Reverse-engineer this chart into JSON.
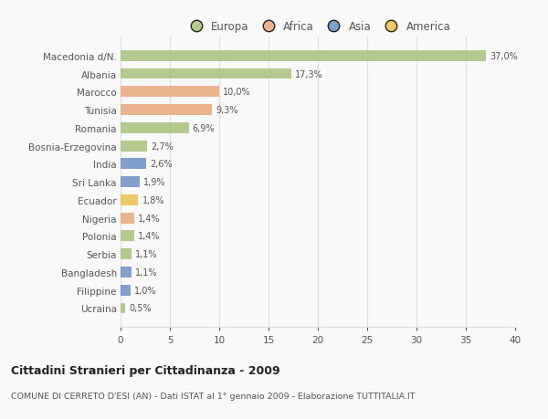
{
  "countries": [
    "Macedonia d/N.",
    "Albania",
    "Marocco",
    "Tunisia",
    "Romania",
    "Bosnia-Erzegovina",
    "India",
    "Sri Lanka",
    "Ecuador",
    "Nigeria",
    "Polonia",
    "Serbia",
    "Bangladesh",
    "Filippine",
    "Ucraina"
  ],
  "values": [
    37.0,
    17.3,
    10.0,
    9.3,
    6.9,
    2.7,
    2.6,
    1.9,
    1.8,
    1.4,
    1.4,
    1.1,
    1.1,
    1.0,
    0.5
  ],
  "labels": [
    "37,0%",
    "17,3%",
    "10,0%",
    "9,3%",
    "6,9%",
    "2,7%",
    "2,6%",
    "1,9%",
    "1,8%",
    "1,4%",
    "1,4%",
    "1,1%",
    "1,1%",
    "1,0%",
    "0,5%"
  ],
  "colors": [
    "#a8c17c",
    "#a8c17c",
    "#e8a87c",
    "#e8a87c",
    "#a8c17c",
    "#a8c17c",
    "#6a8fc4",
    "#6a8fc4",
    "#f0c050",
    "#e8a87c",
    "#a8c17c",
    "#a8c17c",
    "#6a8fc4",
    "#6a8fc4",
    "#a8c17c"
  ],
  "legend_labels": [
    "Europa",
    "Africa",
    "Asia",
    "America"
  ],
  "legend_colors": [
    "#a8c17c",
    "#e8a87c",
    "#6a8fc4",
    "#f0c050"
  ],
  "title": "Cittadini Stranieri per Cittadinanza - 2009",
  "subtitle": "COMUNE DI CERRETO D'ESI (AN) - Dati ISTAT al 1° gennaio 2009 - Elaborazione TUTTITALIA.IT",
  "xlim": [
    0,
    40
  ],
  "xticks": [
    0,
    5,
    10,
    15,
    20,
    25,
    30,
    35,
    40
  ],
  "bg_color": "#f9f9f9",
  "grid_color": "#dddddd"
}
